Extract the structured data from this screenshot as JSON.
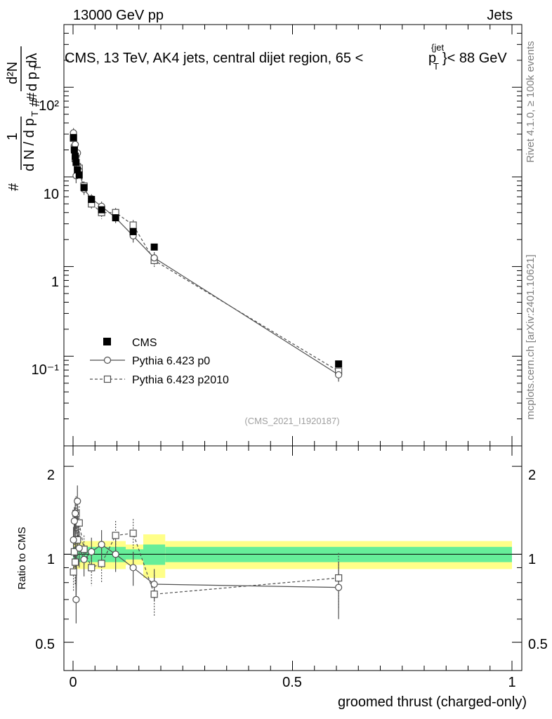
{
  "header": {
    "left": "13000 GeV pp",
    "right": "Jets"
  },
  "plot_title": {
    "main": "CMS, 13 TeV, AK4 jets, central dijet region, 65 <",
    "p": "p",
    "T": "T",
    "jet": "{jet",
    "tail": "}< 88 GeV"
  },
  "ylabel": {
    "hash1": "#",
    "one": "1",
    "dn_dpt": "d N / d p",
    "T1": "T",
    "hash2": "#",
    "d2N": "d²N",
    "dpt_dl": "d p  dλ",
    "T2": "T",
    "hash3": "#"
  },
  "side_labels": {
    "rivet": "Rivet 4.1.0, ≥ 100k events",
    "mcplots": "mcplots.cern.ch [arXiv:2401.10621]"
  },
  "watermark": "(CMS_2021_I1920187)",
  "ratio_ylabel": "Ratio to CMS",
  "xlabel": "groomed thrust (charged-only)",
  "top_ticks": {
    "y100": "10²",
    "y10": "10",
    "y1": "1",
    "y01": "10⁻¹"
  },
  "bottom_ticks": {
    "r2": "2",
    "r1": "1",
    "r05": "0.5",
    "r2_right": "2",
    "r1_right": "1",
    "r05_right": "0.5"
  },
  "x_ticks": {
    "x0": "0",
    "x05": "0.5",
    "x1": "1"
  },
  "legend": {
    "cms": "CMS",
    "p0": "Pythia 6.423 p0",
    "p2010": "Pythia 6.423 p2010"
  },
  "chart_data": {
    "type": "scatter",
    "title": "CMS, 13 TeV, AK4 jets, central dijet region, 65 < p_T^{jet} < 88 GeV",
    "xlabel": "groomed thrust (charged-only)",
    "ylabel": "1/(dN/dp_T) d²N/(dp_T dλ)",
    "xlim": [
      0,
      1
    ],
    "ylim_top": [
      0.01,
      500
    ],
    "yscale_top": "log",
    "ylim_ratio": [
      0.4,
      2.35
    ],
    "yscale_ratio": "log",
    "series": [
      {
        "name": "CMS",
        "x": [
          0.001,
          0.003,
          0.005,
          0.007,
          0.01,
          0.014,
          0.025,
          0.042,
          0.065,
          0.097,
          0.137,
          0.185,
          0.605
        ],
        "y": [
          27.5,
          20.0,
          17.0,
          14.5,
          12.0,
          10.5,
          7.6,
          5.6,
          4.3,
          3.5,
          2.45,
          1.65,
          0.082
        ]
      },
      {
        "name": "Pythia 6.423 p0",
        "x": [
          0.001,
          0.003,
          0.005,
          0.007,
          0.01,
          0.014,
          0.025,
          0.042,
          0.065,
          0.097,
          0.137,
          0.185,
          0.605
        ],
        "y": [
          31.0,
          22.0,
          23.0,
          10.3,
          18.5,
          11.7,
          7.3,
          5.7,
          4.7,
          3.5,
          2.2,
          1.25,
          0.062
        ],
        "yerr": [
          4.0,
          3.0,
          3.5,
          1.8,
          3.0,
          2.0,
          1.0,
          0.7,
          0.6,
          0.45,
          0.35,
          0.2,
          0.01
        ]
      },
      {
        "name": "Pythia 6.423 p2010",
        "x": [
          0.001,
          0.003,
          0.005,
          0.007,
          0.01,
          0.014,
          0.025,
          0.042,
          0.065,
          0.097,
          0.137,
          0.185,
          0.605
        ],
        "y": [
          27.0,
          21.0,
          16.0,
          18.0,
          13.0,
          12.5,
          7.9,
          5.0,
          4.0,
          4.0,
          2.9,
          1.17,
          0.068
        ],
        "yerr": [
          3.5,
          3.0,
          2.5,
          2.8,
          2.0,
          1.8,
          1.0,
          0.7,
          0.6,
          0.5,
          0.4,
          0.2,
          0.012
        ]
      }
    ],
    "ratio": {
      "ylabel": "Ratio to CMS",
      "p0": {
        "x": [
          0.001,
          0.003,
          0.005,
          0.007,
          0.01,
          0.014,
          0.025,
          0.042,
          0.065,
          0.097,
          0.137,
          0.185,
          0.605
        ],
        "y": [
          1.12,
          1.3,
          1.38,
          0.7,
          1.52,
          1.05,
          0.96,
          1.02,
          1.08,
          1.0,
          0.9,
          0.79,
          0.77
        ],
        "yerr": [
          0.12,
          0.15,
          0.18,
          0.12,
          0.2,
          0.15,
          0.12,
          0.12,
          0.13,
          0.13,
          0.12,
          0.1,
          0.17
        ]
      },
      "p2010": {
        "x": [
          0.001,
          0.003,
          0.005,
          0.007,
          0.01,
          0.014,
          0.025,
          0.042,
          0.065,
          0.097,
          0.137,
          0.185,
          0.605
        ],
        "y": [
          0.87,
          1.02,
          0.94,
          1.38,
          1.12,
          1.28,
          1.04,
          0.9,
          0.93,
          1.16,
          1.18,
          0.73,
          0.83
        ],
        "yerr": [
          0.12,
          0.14,
          0.15,
          0.2,
          0.15,
          0.18,
          0.12,
          0.12,
          0.13,
          0.14,
          0.14,
          0.12,
          0.18
        ]
      },
      "bands": [
        {
          "x0": 0.0,
          "x1": 0.12,
          "stat": 0.06,
          "total": 0.11
        },
        {
          "x0": 0.12,
          "x1": 0.16,
          "stat": 0.04,
          "total": 0.08
        },
        {
          "x0": 0.16,
          "x1": 0.21,
          "stat": 0.08,
          "total": 0.17
        },
        {
          "x0": 0.21,
          "x1": 1.0,
          "stat": 0.06,
          "total": 0.11
        }
      ],
      "band_colors": {
        "stat": "#66ee99",
        "total": "#ffff88"
      }
    },
    "legend_position": "lower-left",
    "colors": {
      "cms": "#000000",
      "mc": "#505050"
    }
  }
}
